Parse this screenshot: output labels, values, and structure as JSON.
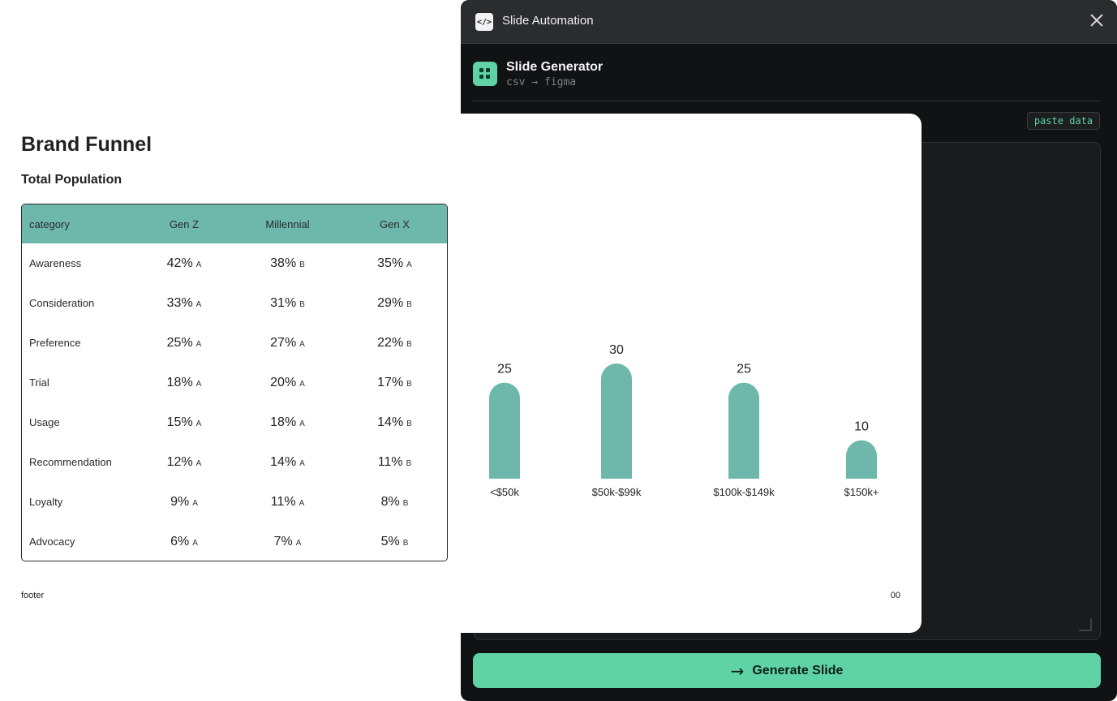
{
  "plugin": {
    "window_title": "Slide Automation",
    "app_icon_glyph": "</>",
    "header": {
      "title": "Slide Generator",
      "subtitle": "csv → figma"
    },
    "paste_button": "paste data",
    "generate_button": "Generate Slide",
    "accent_color": "#5fd3a6"
  },
  "slide": {
    "title": "Brand Funnel",
    "subtitle": "Total Population",
    "footer": "footer",
    "page_number": "00",
    "table": {
      "header_color": "#6db8ab",
      "columns": [
        "category",
        "Gen Z",
        "Millennial",
        "Gen X"
      ],
      "rows": [
        {
          "label": "Awareness",
          "cells": [
            [
              "42%",
              "A"
            ],
            [
              "38%",
              "B"
            ],
            [
              "35%",
              "A"
            ]
          ]
        },
        {
          "label": "Consideration",
          "cells": [
            [
              "33%",
              "A"
            ],
            [
              "31%",
              "B"
            ],
            [
              "29%",
              "B"
            ]
          ]
        },
        {
          "label": "Preference",
          "cells": [
            [
              "25%",
              "A"
            ],
            [
              "27%",
              "A"
            ],
            [
              "22%",
              "B"
            ]
          ]
        },
        {
          "label": "Trial",
          "cells": [
            [
              "18%",
              "A"
            ],
            [
              "20%",
              "A"
            ],
            [
              "17%",
              "B"
            ]
          ]
        },
        {
          "label": "Usage",
          "cells": [
            [
              "15%",
              "A"
            ],
            [
              "18%",
              "A"
            ],
            [
              "14%",
              "B"
            ]
          ]
        },
        {
          "label": "Recommendation",
          "cells": [
            [
              "12%",
              "A"
            ],
            [
              "14%",
              "A"
            ],
            [
              "11%",
              "B"
            ]
          ]
        },
        {
          "label": "Loyalty",
          "cells": [
            [
              "9%",
              "A"
            ],
            [
              "11%",
              "A"
            ],
            [
              "8%",
              "B"
            ]
          ]
        },
        {
          "label": "Advocacy",
          "cells": [
            [
              "6%",
              "A"
            ],
            [
              "7%",
              "A"
            ],
            [
              "5%",
              "B"
            ]
          ]
        }
      ]
    }
  },
  "chart_data": {
    "type": "bar",
    "categories": [
      "<$50k",
      "$50k-$99k",
      "$100k-$149k",
      "$150k+"
    ],
    "values": [
      25,
      30,
      25,
      10
    ],
    "title": "",
    "xlabel": "",
    "ylabel": "",
    "ylim": [
      0,
      30
    ],
    "grid": false,
    "bar_color": "#6db8ab"
  }
}
